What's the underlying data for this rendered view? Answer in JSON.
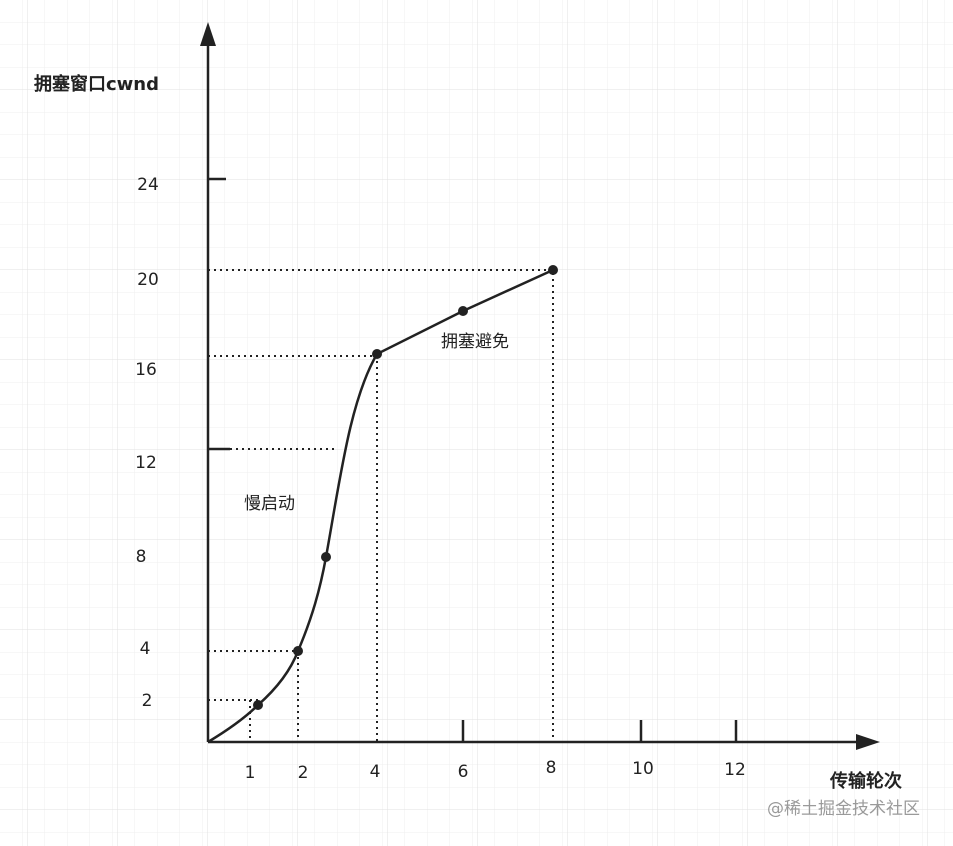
{
  "axes": {
    "y_label": "拥塞窗口cwnd",
    "x_label": "传输轮次",
    "y_ticks": [
      "24",
      "20",
      "16",
      "12",
      "8",
      "4",
      "2"
    ],
    "x_ticks": [
      "1",
      "2",
      "4",
      "6",
      "8",
      "10",
      "12"
    ]
  },
  "annotations": [
    "慢启动",
    "拥塞避免"
  ],
  "watermark": "@稀土掘金技术社区"
}
